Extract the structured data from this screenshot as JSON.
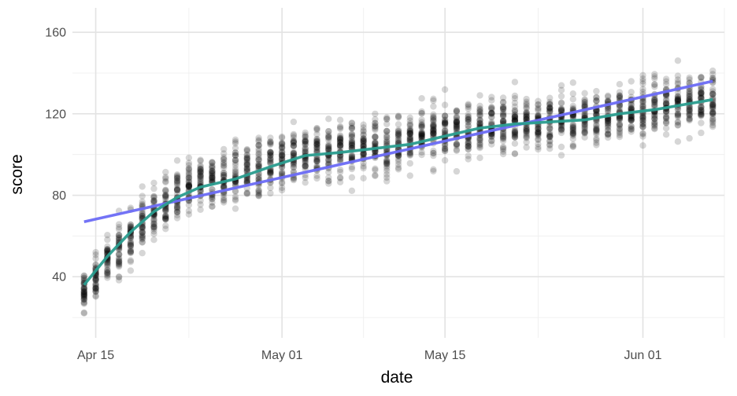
{
  "chart_data": {
    "type": "scatter",
    "title": "",
    "xlabel": "date",
    "ylabel": "score",
    "x_start": "2023-04-13",
    "x_end": "2023-06-08",
    "ylim": [
      10,
      172
    ],
    "grid": true,
    "x_ticks": [
      {
        "date": "2023-04-15",
        "label": "Apr 15"
      },
      {
        "date": "2023-05-01",
        "label": "May 01"
      },
      {
        "date": "2023-05-15",
        "label": "May 15"
      },
      {
        "date": "2023-06-01",
        "label": "Jun 01"
      }
    ],
    "x_minor_ticks": [
      "2023-04-23",
      "2023-05-08",
      "2023-05-23",
      "2023-06-08"
    ],
    "y_ticks": [
      40,
      80,
      120,
      160
    ],
    "y_minor_ticks": [
      20,
      60,
      100,
      140
    ],
    "point_style": {
      "color": "#000000",
      "opacity": 0.16
    },
    "scatter": {
      "x_range": [
        "2023-04-14",
        "2023-06-07"
      ],
      "mean": [
        [
          "2023-04-14",
          32
        ],
        [
          "2023-04-16",
          48
        ],
        [
          "2023-04-18",
          60
        ],
        [
          "2023-04-20",
          72
        ],
        [
          "2023-04-22",
          80
        ],
        [
          "2023-04-25",
          87
        ],
        [
          "2023-04-28",
          92
        ],
        [
          "2023-05-01",
          98
        ],
        [
          "2023-05-05",
          102
        ],
        [
          "2023-05-10",
          105
        ],
        [
          "2023-05-15",
          111
        ],
        [
          "2023-05-20",
          115
        ],
        [
          "2023-05-25",
          117
        ],
        [
          "2023-05-30",
          120
        ],
        [
          "2023-06-03",
          124
        ],
        [
          "2023-06-07",
          127
        ]
      ],
      "spread": 15,
      "days_sampled": 55,
      "per_day": 42
    },
    "series": [
      {
        "type": "line",
        "color": "#6b6bf5",
        "points": [
          [
            "2023-04-14",
            67
          ],
          [
            "2023-06-07",
            136
          ]
        ]
      },
      {
        "type": "line",
        "color": "#2a9d8f",
        "points": [
          [
            "2023-04-14",
            36
          ],
          [
            "2023-04-16",
            50
          ],
          [
            "2023-04-18",
            62
          ],
          [
            "2023-04-20",
            72
          ],
          [
            "2023-04-22",
            79
          ],
          [
            "2023-04-24",
            84
          ],
          [
            "2023-04-27",
            88
          ],
          [
            "2023-04-30",
            94
          ],
          [
            "2023-05-03",
            99.5
          ],
          [
            "2023-05-06",
            101
          ],
          [
            "2023-05-09",
            103
          ],
          [
            "2023-05-12",
            105
          ],
          [
            "2023-05-15",
            109
          ],
          [
            "2023-05-18",
            113
          ],
          [
            "2023-05-21",
            115
          ],
          [
            "2023-05-24",
            116
          ],
          [
            "2023-05-27",
            117
          ],
          [
            "2023-05-30",
            120
          ],
          [
            "2023-06-02",
            122
          ],
          [
            "2023-06-05",
            125
          ],
          [
            "2023-06-07",
            127
          ]
        ]
      }
    ]
  }
}
